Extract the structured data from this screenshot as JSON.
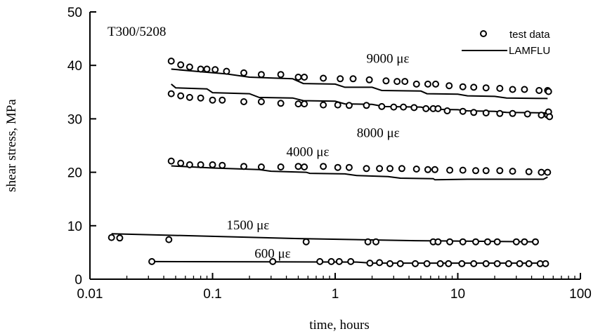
{
  "chart_data": {
    "type": "scatter",
    "xscale": "log",
    "xlim": [
      0.01,
      100
    ],
    "ylim": [
      0,
      50
    ],
    "xticks": [
      "0.01",
      "0.1",
      "1",
      "10",
      "100"
    ],
    "yticks": [
      "0",
      "10",
      "20",
      "30",
      "40",
      "50"
    ],
    "xlabel": "time, hours",
    "ylabel": "shear stress, MPa",
    "material_label": "T300/5208",
    "legend": {
      "position": "top-right",
      "points_label": "test data",
      "line_label": "LAMFLU"
    },
    "series": [
      {
        "label": "9000 με",
        "label_at": [
          1.8,
          40.5
        ],
        "points": [
          [
            0.046,
            40.8
          ],
          [
            0.055,
            40.1
          ],
          [
            0.065,
            39.7
          ],
          [
            0.08,
            39.3
          ],
          [
            0.09,
            39.3
          ],
          [
            0.105,
            39.2
          ],
          [
            0.13,
            38.9
          ],
          [
            0.18,
            38.6
          ],
          [
            0.25,
            38.3
          ],
          [
            0.36,
            38.3
          ],
          [
            0.5,
            37.8
          ],
          [
            0.56,
            37.8
          ],
          [
            0.8,
            37.6
          ],
          [
            1.1,
            37.5
          ],
          [
            1.4,
            37.5
          ],
          [
            1.9,
            37.3
          ],
          [
            2.6,
            37.1
          ],
          [
            3.2,
            37.0
          ],
          [
            3.7,
            37.0
          ],
          [
            4.6,
            36.5
          ],
          [
            5.7,
            36.5
          ],
          [
            6.6,
            36.5
          ],
          [
            8.5,
            36.2
          ],
          [
            11,
            36.0
          ],
          [
            13.5,
            35.9
          ],
          [
            17,
            35.8
          ],
          [
            22,
            35.7
          ],
          [
            28,
            35.5
          ],
          [
            35,
            35.5
          ],
          [
            46,
            35.3
          ],
          [
            54,
            35.3
          ],
          [
            55,
            35.1
          ]
        ],
        "model": [
          [
            0.046,
            39.3
          ],
          [
            0.08,
            38.8
          ],
          [
            0.13,
            38.4
          ],
          [
            0.2,
            37.8
          ],
          [
            0.45,
            37.5
          ],
          [
            0.55,
            36.6
          ],
          [
            1.0,
            36.5
          ],
          [
            1.2,
            35.9
          ],
          [
            2.0,
            35.9
          ],
          [
            2.4,
            35.3
          ],
          [
            5.0,
            35.2
          ],
          [
            5.6,
            34.7
          ],
          [
            10,
            34.6
          ],
          [
            12,
            34.3
          ],
          [
            20,
            34.2
          ],
          [
            25,
            33.9
          ],
          [
            54,
            33.8
          ]
        ]
      },
      {
        "label": "8000 με",
        "label_at": [
          1.5,
          26.6
        ],
        "points": [
          [
            0.046,
            34.7
          ],
          [
            0.055,
            34.3
          ],
          [
            0.065,
            34.0
          ],
          [
            0.08,
            33.9
          ],
          [
            0.1,
            33.5
          ],
          [
            0.12,
            33.5
          ],
          [
            0.18,
            33.2
          ],
          [
            0.25,
            33.2
          ],
          [
            0.36,
            32.9
          ],
          [
            0.5,
            32.8
          ],
          [
            0.56,
            32.8
          ],
          [
            0.8,
            32.6
          ],
          [
            1.05,
            32.6
          ],
          [
            1.3,
            32.5
          ],
          [
            1.8,
            32.5
          ],
          [
            2.4,
            32.3
          ],
          [
            3.0,
            32.2
          ],
          [
            3.6,
            32.2
          ],
          [
            4.4,
            32.1
          ],
          [
            5.5,
            31.9
          ],
          [
            6.3,
            31.9
          ],
          [
            6.9,
            31.9
          ],
          [
            8.2,
            31.5
          ],
          [
            11,
            31.4
          ],
          [
            13.5,
            31.2
          ],
          [
            17,
            31.1
          ],
          [
            22,
            31.0
          ],
          [
            28,
            31.0
          ],
          [
            37,
            30.9
          ],
          [
            48,
            30.7
          ],
          [
            54,
            30.7
          ],
          [
            55,
            31.3
          ],
          [
            56,
            30.4
          ]
        ],
        "model": [
          [
            0.046,
            36.5
          ],
          [
            0.05,
            35.8
          ],
          [
            0.09,
            35.6
          ],
          [
            0.1,
            34.9
          ],
          [
            0.2,
            34.7
          ],
          [
            0.24,
            34.0
          ],
          [
            0.45,
            33.9
          ],
          [
            0.55,
            33.4
          ],
          [
            1.0,
            33.3
          ],
          [
            1.2,
            32.8
          ],
          [
            2.0,
            32.7
          ],
          [
            2.5,
            32.3
          ],
          [
            5,
            32.2
          ],
          [
            6,
            31.8
          ],
          [
            10,
            31.7
          ],
          [
            12,
            31.5
          ],
          [
            20,
            31.4
          ],
          [
            25,
            31.2
          ],
          [
            54,
            31.1
          ]
        ]
      },
      {
        "label": "4000 με",
        "label_at": [
          0.4,
          23.0
        ],
        "points": [
          [
            0.046,
            22.1
          ],
          [
            0.055,
            21.7
          ],
          [
            0.065,
            21.4
          ],
          [
            0.08,
            21.4
          ],
          [
            0.1,
            21.4
          ],
          [
            0.12,
            21.3
          ],
          [
            0.18,
            21.1
          ],
          [
            0.25,
            21.0
          ],
          [
            0.36,
            21.0
          ],
          [
            0.5,
            21.1
          ],
          [
            0.56,
            21.0
          ],
          [
            0.8,
            21.1
          ],
          [
            1.05,
            20.9
          ],
          [
            1.3,
            20.9
          ],
          [
            1.8,
            20.7
          ],
          [
            2.3,
            20.7
          ],
          [
            2.8,
            20.7
          ],
          [
            3.5,
            20.7
          ],
          [
            4.6,
            20.6
          ],
          [
            5.7,
            20.5
          ],
          [
            6.5,
            20.5
          ],
          [
            8.6,
            20.4
          ],
          [
            11,
            20.4
          ],
          [
            14,
            20.3
          ],
          [
            17,
            20.3
          ],
          [
            22,
            20.3
          ],
          [
            28,
            20.2
          ],
          [
            38,
            20.1
          ],
          [
            48,
            20.0
          ],
          [
            54,
            20.0
          ]
        ],
        "model": [
          [
            0.046,
            21.2
          ],
          [
            0.1,
            20.8
          ],
          [
            0.24,
            20.5
          ],
          [
            0.3,
            20.2
          ],
          [
            0.58,
            20.0
          ],
          [
            0.62,
            19.8
          ],
          [
            1.2,
            19.7
          ],
          [
            1.5,
            19.4
          ],
          [
            2.7,
            19.2
          ],
          [
            3.4,
            18.9
          ],
          [
            6.3,
            18.8
          ],
          [
            6.5,
            18.6
          ],
          [
            12,
            18.7
          ],
          [
            20,
            18.7
          ],
          [
            50,
            18.7
          ],
          [
            54,
            19.1
          ]
        ]
      },
      {
        "label": "1500 με",
        "label_at": [
          0.13,
          9.3
        ],
        "points": [
          [
            0.015,
            7.8
          ],
          [
            0.0175,
            7.7
          ],
          [
            0.044,
            7.4
          ],
          [
            0.58,
            7.0
          ],
          [
            1.85,
            7.0
          ],
          [
            2.15,
            7.0
          ],
          [
            6.3,
            7.0
          ],
          [
            6.9,
            7.0
          ],
          [
            8.6,
            7.0
          ],
          [
            11,
            7.0
          ],
          [
            14,
            7.0
          ],
          [
            17.5,
            7.0
          ],
          [
            21,
            7.0
          ],
          [
            30,
            7.0
          ],
          [
            35,
            7.0
          ],
          [
            43,
            7.0
          ]
        ],
        "model": [
          [
            0.015,
            8.5
          ],
          [
            0.5,
            7.6
          ],
          [
            4.5,
            7.2
          ],
          [
            43,
            7.0
          ]
        ]
      },
      {
        "label": "600 με",
        "label_at": [
          0.22,
          4.0
        ],
        "points": [
          [
            0.032,
            3.3
          ],
          [
            0.31,
            3.3
          ],
          [
            0.75,
            3.3
          ],
          [
            0.93,
            3.3
          ],
          [
            1.08,
            3.3
          ],
          [
            1.34,
            3.3
          ],
          [
            1.92,
            3.0
          ],
          [
            2.3,
            3.1
          ],
          [
            2.8,
            2.9
          ],
          [
            3.4,
            2.9
          ],
          [
            4.5,
            2.9
          ],
          [
            5.6,
            2.9
          ],
          [
            7.2,
            2.9
          ],
          [
            8.4,
            2.9
          ],
          [
            10.8,
            2.9
          ],
          [
            13.5,
            2.9
          ],
          [
            17,
            2.9
          ],
          [
            21,
            2.9
          ],
          [
            26,
            2.9
          ],
          [
            32,
            2.9
          ],
          [
            38,
            2.9
          ],
          [
            47,
            2.9
          ],
          [
            52,
            2.9
          ]
        ],
        "model": [
          [
            0.032,
            3.3
          ],
          [
            1.5,
            3.2
          ],
          [
            2.0,
            3.0
          ],
          [
            52,
            3.0
          ]
        ]
      }
    ]
  }
}
